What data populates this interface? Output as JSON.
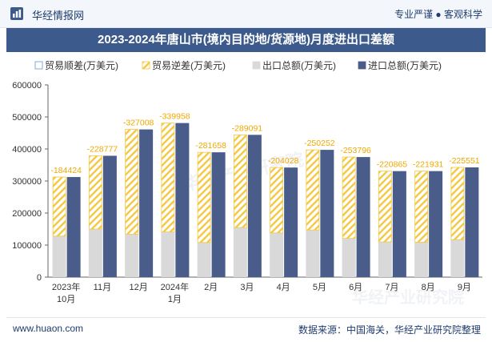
{
  "header": {
    "brand": "华经情报网",
    "tagline": "专业严谨 ● 客观科学",
    "logo_icon": "huajing-logo-icon"
  },
  "chart_data": {
    "type": "bar",
    "title": "2023-2024年唐山市(境内目的地/货源地)月度进出口差额",
    "categories": [
      "2023年10月",
      "11月",
      "12月",
      "2024年1月",
      "2月",
      "3月",
      "4月",
      "5月",
      "6月",
      "7月",
      "8月",
      "9月"
    ],
    "series": [
      {
        "name": "贸易顺差(万美元)",
        "values": [
          0,
          0,
          0,
          0,
          0,
          0,
          0,
          0,
          0,
          0,
          0,
          0
        ]
      },
      {
        "name": "贸易逆差(万美元)",
        "values": [
          -184424,
          -228777,
          -327008,
          -339958,
          -281658,
          -289091,
          -204028,
          -250252,
          -253796,
          -220865,
          -221931,
          -225551
        ]
      },
      {
        "name": "出口总额(万美元)",
        "values": [
          128000,
          150000,
          134000,
          141000,
          108000,
          155000,
          138000,
          147000,
          121000,
          110000,
          109000,
          117000
        ]
      },
      {
        "name": "进口总额(万美元)",
        "values": [
          312424,
          378777,
          461008,
          480958,
          389658,
          444091,
          342028,
          397252,
          374796,
          330865,
          330931,
          342551
        ]
      }
    ],
    "data_labels": [
      "-184424",
      "-228777",
      "-327008",
      "-339958",
      "-281658",
      "-289091",
      "-204028",
      "-250252",
      "-253796",
      "-220865",
      "-221931",
      "-225551"
    ],
    "yticks": [
      "0",
      "100000",
      "200000",
      "300000",
      "400000",
      "500000",
      "600000"
    ],
    "ylim": [
      0,
      600000
    ],
    "legend_position": "top-left",
    "grid": false,
    "colors": {
      "surplus": "#5b9bd5",
      "deficit_stripe": "#f5c842",
      "export": "#d9d9d9",
      "import": "#4a5d8a"
    }
  },
  "watermark": "华经产业研究院",
  "footer": {
    "website": "www.huaon.com",
    "source": "数据来源：中国海关，华经产业研究院整理"
  }
}
